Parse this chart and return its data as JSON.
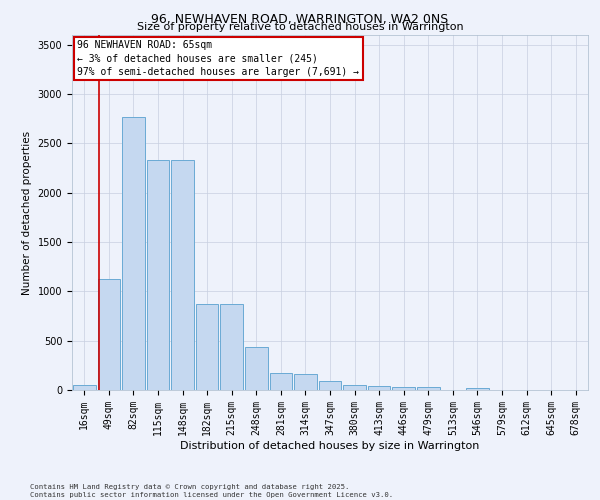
{
  "title": "96, NEWHAVEN ROAD, WARRINGTON, WA2 0NS",
  "subtitle": "Size of property relative to detached houses in Warrington",
  "xlabel": "Distribution of detached houses by size in Warrington",
  "ylabel": "Number of detached properties",
  "categories": [
    "16sqm",
    "49sqm",
    "82sqm",
    "115sqm",
    "148sqm",
    "182sqm",
    "215sqm",
    "248sqm",
    "281sqm",
    "314sqm",
    "347sqm",
    "380sqm",
    "413sqm",
    "446sqm",
    "479sqm",
    "513sqm",
    "546sqm",
    "579sqm",
    "612sqm",
    "645sqm",
    "678sqm"
  ],
  "values": [
    50,
    1130,
    2770,
    2330,
    2330,
    870,
    870,
    440,
    170,
    165,
    90,
    55,
    45,
    30,
    30,
    0,
    20,
    0,
    0,
    0,
    0
  ],
  "bar_color": "#c5d8f0",
  "bar_edgecolor": "#6aaad4",
  "red_line_x": 0.58,
  "annotation_text": "96 NEWHAVEN ROAD: 65sqm\n← 3% of detached houses are smaller (245)\n97% of semi-detached houses are larger (7,691) →",
  "annotation_box_color": "#ffffff",
  "annotation_box_edgecolor": "#cc0000",
  "red_line_color": "#cc0000",
  "footer1": "Contains HM Land Registry data © Crown copyright and database right 2025.",
  "footer2": "Contains public sector information licensed under the Open Government Licence v3.0.",
  "bg_color": "#eef2fb",
  "grid_color": "#c8cfe0",
  "ylim": [
    0,
    3600
  ],
  "title_fontsize": 9,
  "subtitle_fontsize": 8,
  "ylabel_fontsize": 7.5,
  "xlabel_fontsize": 8,
  "tick_fontsize": 7,
  "annot_fontsize": 7
}
